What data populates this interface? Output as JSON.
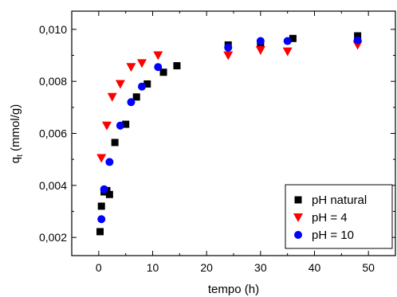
{
  "chart_data": {
    "type": "scatter",
    "xlabel": "tempo (h)",
    "ylabel_main": "q",
    "ylabel_sub": "t",
    "ylabel_unit": " (mmol/g)",
    "xlim": [
      -5,
      55
    ],
    "ylim": [
      0.0013,
      0.0107
    ],
    "x_ticks": [
      {
        "value": 0,
        "label": "0"
      },
      {
        "value": 10,
        "label": "10"
      },
      {
        "value": 20,
        "label": "20"
      },
      {
        "value": 30,
        "label": "30"
      },
      {
        "value": 40,
        "label": "40"
      },
      {
        "value": 50,
        "label": "50"
      }
    ],
    "y_ticks": [
      {
        "value": 0.002,
        "label": "0,002"
      },
      {
        "value": 0.004,
        "label": "0,004"
      },
      {
        "value": 0.006,
        "label": "0,006"
      },
      {
        "value": 0.008,
        "label": "0,008"
      },
      {
        "value": 0.01,
        "label": "0,010"
      }
    ],
    "grid": false,
    "legend_position": "bottom-right",
    "series": [
      {
        "name": "pH natural",
        "marker": "square",
        "color": "#000000",
        "x": [
          0.25,
          0.5,
          1,
          1.5,
          2,
          3,
          5,
          7,
          9,
          12,
          14.5,
          24,
          30,
          36,
          48
        ],
        "y": [
          0.00222,
          0.0032,
          0.00375,
          0.0038,
          0.00365,
          0.00565,
          0.00635,
          0.0074,
          0.0079,
          0.00835,
          0.0086,
          0.0094,
          0.0094,
          0.00965,
          0.00975
        ]
      },
      {
        "name": "pH = 4",
        "marker": "triangle-down",
        "color": "#ff0000",
        "x": [
          0.5,
          1.5,
          2.5,
          4,
          6,
          8,
          11,
          24,
          30,
          35,
          48
        ],
        "y": [
          0.00505,
          0.0063,
          0.0074,
          0.0079,
          0.00855,
          0.0087,
          0.009,
          0.009,
          0.0092,
          0.00915,
          0.0094
        ]
      },
      {
        "name": "pH = 10",
        "marker": "circle",
        "color": "#0000ff",
        "x": [
          0.5,
          1,
          2,
          4,
          6,
          8,
          11,
          24,
          30,
          35,
          48
        ],
        "y": [
          0.0027,
          0.00385,
          0.0049,
          0.0063,
          0.0072,
          0.0078,
          0.00855,
          0.0093,
          0.00955,
          0.00955,
          0.00958
        ]
      }
    ]
  }
}
